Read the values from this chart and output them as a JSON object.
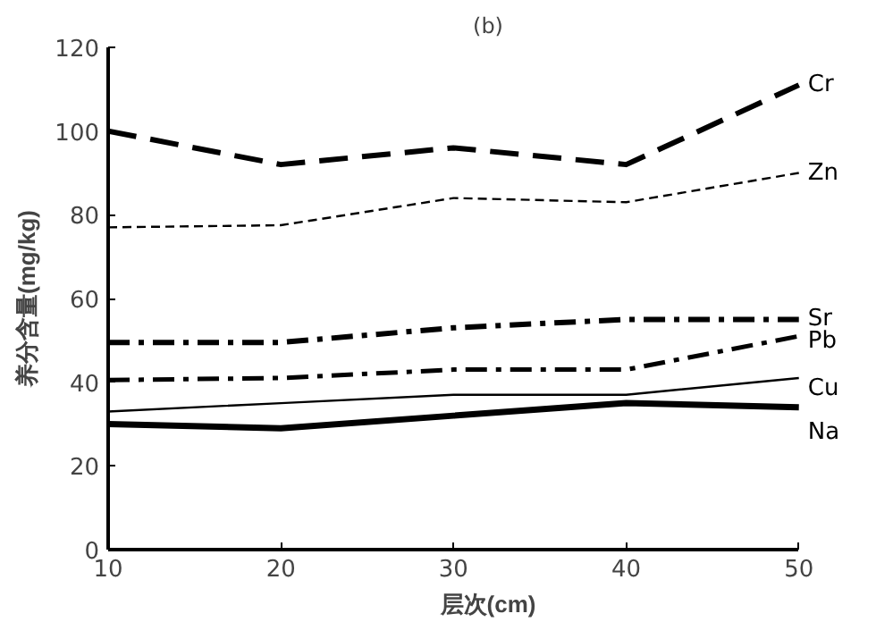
{
  "chart_data": {
    "type": "line",
    "title": "(b)",
    "xlabel": "层次(cm)",
    "ylabel": "养分含量(mg/kg)",
    "x": [
      10,
      20,
      30,
      40,
      50
    ],
    "series": [
      {
        "name": "Cr",
        "color": "#000000",
        "line_style": "dashed",
        "values": [
          100,
          92,
          96,
          92,
          111
        ]
      },
      {
        "name": "Zn",
        "color": "#000000",
        "line_style": "dashed",
        "values": [
          77,
          77.5,
          84,
          83,
          90
        ]
      },
      {
        "name": "Sr",
        "color": "#000000",
        "line_style": "dashdot",
        "values": [
          49.5,
          49.5,
          53,
          55,
          55
        ]
      },
      {
        "name": "Pb",
        "color": "#000000",
        "line_style": "dashdot",
        "values": [
          40.5,
          41,
          43,
          43,
          51
        ]
      },
      {
        "name": "Cu",
        "color": "#000000",
        "line_style": "solid",
        "values": [
          33,
          35,
          37,
          37,
          41
        ]
      },
      {
        "name": "Na",
        "color": "#000000",
        "line_style": "solid",
        "values": [
          30,
          29,
          32,
          35,
          34
        ]
      }
    ],
    "xlim": [
      10,
      50
    ],
    "ylim": [
      0,
      120
    ],
    "xticks": [
      10,
      20,
      30,
      40,
      50
    ],
    "yticks": [
      0,
      20,
      40,
      60,
      80,
      100,
      120
    ],
    "grid": false,
    "marker": "none"
  }
}
